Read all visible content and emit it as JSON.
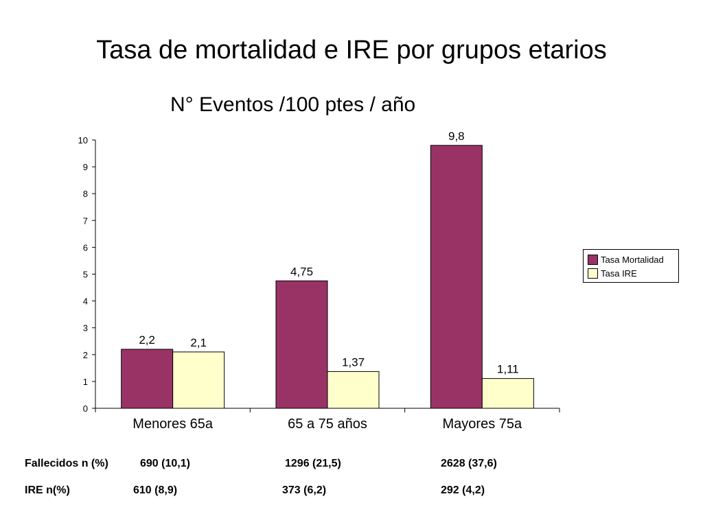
{
  "slide": {
    "title": "Tasa de mortalidad e IRE por grupos etarios"
  },
  "colors": {
    "mortalidad": "#993366",
    "ire": "#ffffcc",
    "axis": "#000000"
  },
  "chart_data": {
    "type": "bar",
    "title": "N° Eventos /100 ptes / año",
    "xlabel": "",
    "ylabel": "",
    "ylim": [
      0,
      10
    ],
    "yticks": [
      "0",
      "1",
      "2",
      "3",
      "4",
      "5",
      "6",
      "7",
      "8",
      "9",
      "10"
    ],
    "grid": false,
    "legend_position": "right",
    "categories": [
      "Menores 65a",
      "65 a 75 años",
      "Mayores 75a"
    ],
    "series": [
      {
        "name": "Tasa Mortalidad",
        "values": [
          2.2,
          4.75,
          9.8
        ],
        "labels": [
          "2,2",
          "4,75",
          "9,8"
        ]
      },
      {
        "name": "Tasa IRE",
        "values": [
          2.1,
          1.37,
          1.11
        ],
        "labels": [
          "2,1",
          "1,37",
          "1,11"
        ]
      }
    ]
  },
  "stats": {
    "fallecidos": {
      "label": "Fallecidos n (%)",
      "values": [
        "690 (10,1)",
        "1296 (21,5)",
        "2628 (37,6)"
      ]
    },
    "ire": {
      "label": "IRE n(%)",
      "values": [
        "610 (8,9)",
        "373 (6,2)",
        "292 (4,2)"
      ]
    }
  }
}
